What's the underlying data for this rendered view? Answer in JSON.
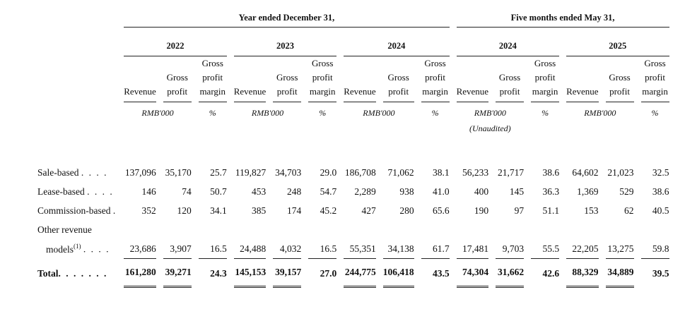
{
  "periods": {
    "year_ended": "Year ended December 31,",
    "five_months": "Five months ended May 31,"
  },
  "years": [
    "2022",
    "2023",
    "2024",
    "2024",
    "2025"
  ],
  "col_headers": {
    "revenue": "Revenue",
    "gross": "Gross",
    "profit": "profit",
    "gp1": "Gross",
    "gp2": "profit",
    "gp3": "margin"
  },
  "units": {
    "rmb": "RMB'000",
    "pct": "%",
    "unaudited": "(Unaudited)"
  },
  "rows": [
    {
      "label": "Sale-based",
      "dots": ". . . .",
      "values": [
        "137,096",
        "35,170",
        "25.7",
        "119,827",
        "34,703",
        "29.0",
        "186,708",
        "71,062",
        "38.1",
        "56,233",
        "21,717",
        "38.6",
        "64,602",
        "21,023",
        "32.5"
      ]
    },
    {
      "label": "Lease-based",
      "dots": ". . . .",
      "values": [
        "146",
        "74",
        "50.7",
        "453",
        "248",
        "54.7",
        "2,289",
        "938",
        "41.0",
        "400",
        "145",
        "36.3",
        "1,369",
        "529",
        "38.6"
      ]
    },
    {
      "label": "Commission-based",
      "dots": ".",
      "values": [
        "352",
        "120",
        "34.1",
        "385",
        "174",
        "45.2",
        "427",
        "280",
        "65.6",
        "190",
        "97",
        "51.1",
        "153",
        "62",
        "40.5"
      ]
    },
    {
      "label": "Other revenue",
      "label2": "models",
      "sup": "(1)",
      "dots": ". . . .",
      "values": [
        "23,686",
        "3,907",
        "16.5",
        "24,488",
        "4,032",
        "16.5",
        "55,351",
        "34,138",
        "61.7",
        "17,481",
        "9,703",
        "55.5",
        "22,205",
        "13,275",
        "59.8"
      ]
    }
  ],
  "total": {
    "label": "Total",
    "dots": ". . . . . . .",
    "values": [
      "161,280",
      "39,271",
      "24.3",
      "145,153",
      "39,157",
      "27.0",
      "244,775",
      "106,418",
      "43.5",
      "74,304",
      "31,662",
      "42.6",
      "88,329",
      "34,889",
      "39.5"
    ]
  }
}
